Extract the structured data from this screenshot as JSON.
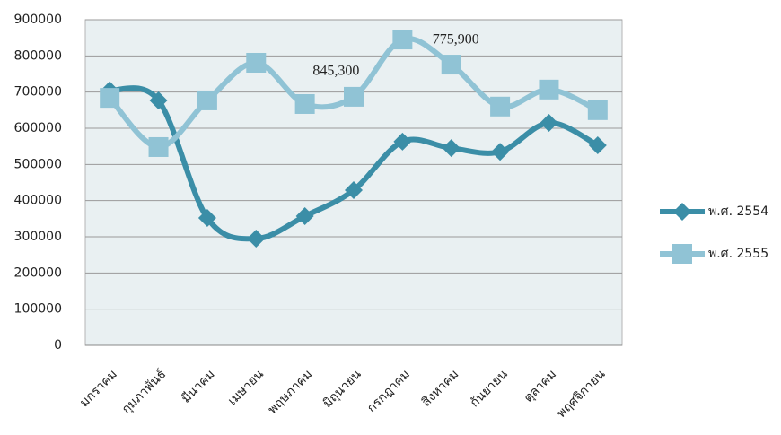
{
  "chart_data": {
    "type": "line",
    "categories": [
      "มกราคม",
      "กุมภาพันธ์",
      "มีนาคม",
      "เมษายน",
      "พฤษภาคม",
      "มิถุนายน",
      "กรกฎาคม",
      "สิงหาคม",
      "กันยายน",
      "ตุลาคม",
      "พฤศจิกายน"
    ],
    "series": [
      {
        "name": "พ.ศ. 2554",
        "color": "#3b8ea7",
        "marker": "diamond",
        "values": [
          705000,
          677000,
          352000,
          295000,
          357000,
          429000,
          563000,
          545000,
          535000,
          615000,
          553000
        ]
      },
      {
        "name": "พ.ศ. 2555",
        "color": "#90c3d5",
        "marker": "square",
        "values": [
          684000,
          548000,
          677000,
          781000,
          667000,
          687000,
          845300,
          775900,
          660000,
          707000,
          650000
        ],
        "value_labels": [
          null,
          null,
          null,
          null,
          null,
          null,
          "845,300",
          "775,900",
          null,
          null,
          null
        ]
      }
    ],
    "ylim": [
      0,
      900000
    ],
    "yticks": [
      0,
      100000,
      200000,
      300000,
      400000,
      500000,
      600000,
      700000,
      800000,
      900000
    ],
    "grid": true,
    "legend": "right"
  }
}
